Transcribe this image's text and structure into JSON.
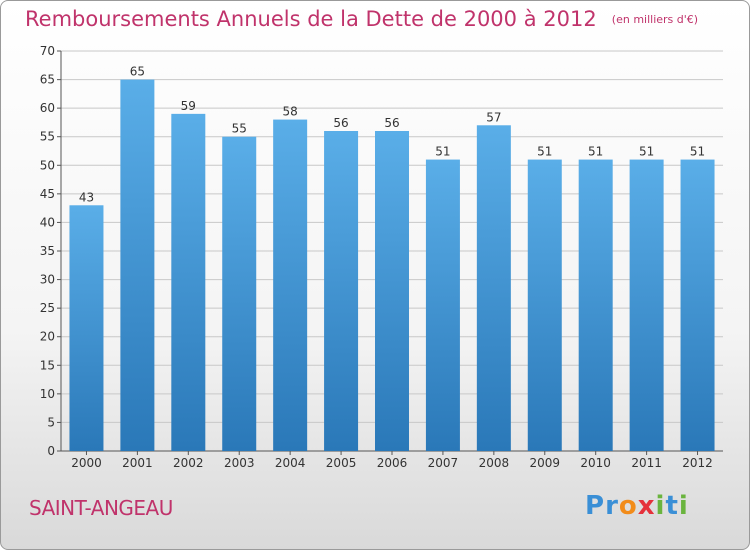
{
  "chart_data": {
    "type": "bar",
    "title": "Remboursements Annuels de la Dette de 2000 à 2012",
    "unit_note": "(en milliers d'€)",
    "categories": [
      "2000",
      "2001",
      "2002",
      "2003",
      "2004",
      "2005",
      "2006",
      "2007",
      "2008",
      "2009",
      "2010",
      "2011",
      "2012"
    ],
    "values": [
      43,
      65,
      59,
      55,
      58,
      56,
      56,
      51,
      57,
      51,
      51,
      51,
      51
    ],
    "ylim": [
      0,
      70
    ],
    "yticks": [
      0,
      5,
      10,
      15,
      20,
      25,
      30,
      35,
      40,
      45,
      50,
      55,
      60,
      65,
      70
    ],
    "grid": true,
    "xlabel": "",
    "ylabel": "",
    "bar_color_top": "#5aaee8",
    "bar_color_bottom": "#2a78b8"
  },
  "place_name": "SAINT-ANGEAU",
  "logo": {
    "letters": [
      "P",
      "r",
      "o",
      "x",
      "i",
      "t",
      "i"
    ],
    "colors": [
      "#3a8fd6",
      "#3a8fd6",
      "#f28c1a",
      "#e5313b",
      "#6ab43e",
      "#3a8fd6",
      "#6ab43e"
    ]
  },
  "colors": {
    "title": "#c0336b",
    "label": "#333333",
    "grid": "#c8c8c8",
    "axis": "#555555"
  }
}
